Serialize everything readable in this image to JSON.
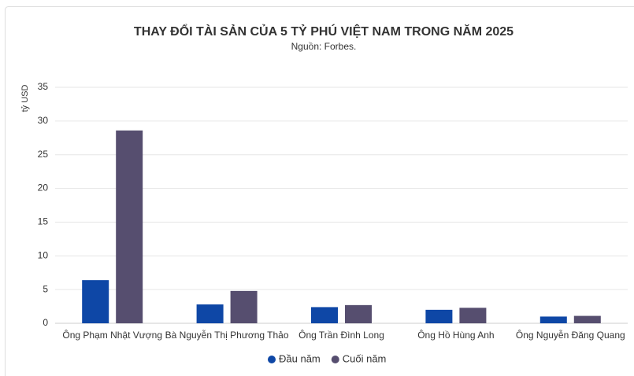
{
  "chart_data": {
    "type": "bar",
    "title": "THAY ĐỔI TÀI SẢN CỦA 5 TỶ PHÚ VIỆT NAM TRONG NĂM 2025",
    "subtitle": "Nguồn: Forbes.",
    "y_label": "tỷ USD",
    "categories": [
      "Ông Phạm Nhật Vượng",
      "Bà Nguyễn Thị Phương Thảo",
      "Ông Trần Đình Long",
      "Ông Hồ Hùng Anh",
      "Ông Nguyễn Đăng Quang"
    ],
    "series": [
      {
        "name": "Đầu năm",
        "color": "#0e47a6",
        "values": [
          6.4,
          2.8,
          2.4,
          2.0,
          1.0
        ]
      },
      {
        "name": "Cuối năm",
        "color": "#564e6f",
        "values": [
          28.6,
          4.8,
          2.7,
          2.3,
          1.1
        ]
      }
    ],
    "ylim": [
      0,
      35
    ],
    "yticks": [
      0,
      5,
      10,
      15,
      20,
      25,
      30,
      35
    ],
    "grid": true
  }
}
